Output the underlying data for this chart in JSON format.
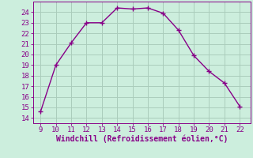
{
  "x": [
    9,
    10,
    11,
    12,
    13,
    14,
    15,
    16,
    17,
    18,
    19,
    20,
    21,
    22
  ],
  "y": [
    14.6,
    19.0,
    21.1,
    23.0,
    23.0,
    24.4,
    24.3,
    24.4,
    23.9,
    22.3,
    19.9,
    18.4,
    17.3,
    15.1
  ],
  "line_color": "#880088",
  "marker": "+",
  "marker_size": 4,
  "marker_linewidth": 1.0,
  "xlabel": "Windchill (Refroidissement éolien,°C)",
  "xlabel_color": "#880088",
  "bg_color": "#cceedd",
  "grid_color": "#aaccbb",
  "xlim": [
    8.5,
    22.7
  ],
  "ylim": [
    13.5,
    25.0
  ],
  "xticks": [
    9,
    10,
    11,
    12,
    13,
    14,
    15,
    16,
    17,
    18,
    19,
    20,
    21,
    22
  ],
  "yticks": [
    14,
    15,
    16,
    17,
    18,
    19,
    20,
    21,
    22,
    23,
    24
  ],
  "tick_color": "#880088",
  "tick_fontsize": 6.5,
  "xlabel_fontsize": 7,
  "spine_color": "#880088",
  "linewidth": 1.0
}
